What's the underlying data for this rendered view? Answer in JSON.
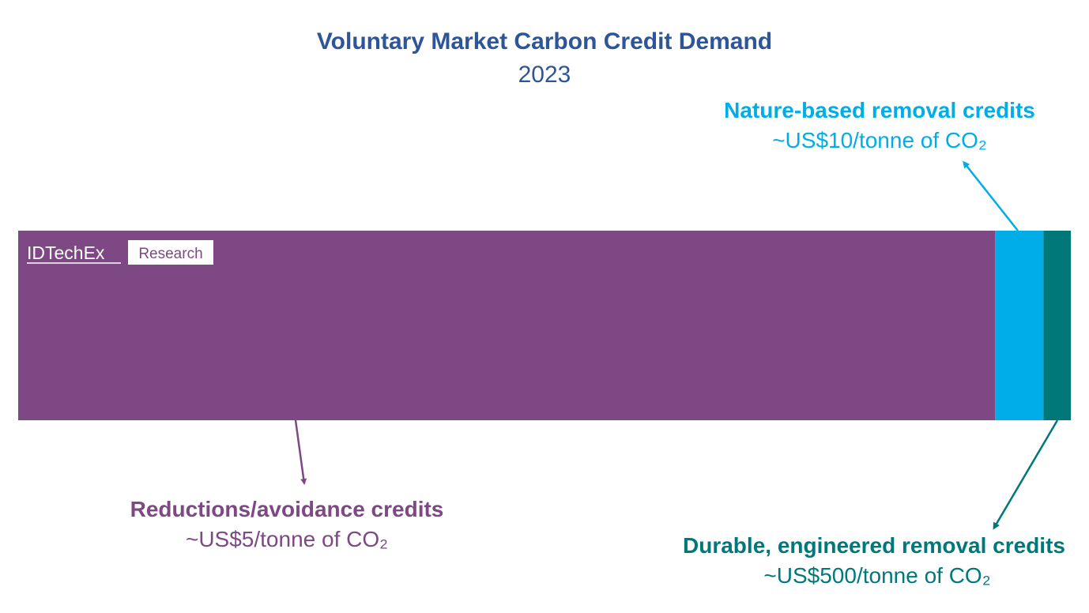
{
  "chart_data": {
    "type": "bar",
    "orientation": "horizontal-stacked",
    "title": "Voluntary Market Carbon Credit Demand",
    "subtitle": "2023",
    "categories": [
      "2023"
    ],
    "series": [
      {
        "name": "Reductions/avoidance credits",
        "price_label": "~US$5/tonne of CO₂",
        "share_percent": 92.8,
        "color": "#7d4883"
      },
      {
        "name": "Nature-based removal credits",
        "price_label": "~US$10/tonne of CO₂",
        "share_percent": 4.6,
        "color": "#00ade6"
      },
      {
        "name": "Durable, engineered removal credits",
        "price_label": "~US$500/tonne of CO₂",
        "share_percent": 2.6,
        "color": "#00787a"
      }
    ],
    "xlabel": "",
    "ylabel": "",
    "grid": false,
    "legend": "annotations"
  },
  "logo": {
    "brand": "IDTechEx",
    "division": "Research"
  },
  "colors": {
    "title": "#2e5597",
    "background": "#ffffff"
  }
}
